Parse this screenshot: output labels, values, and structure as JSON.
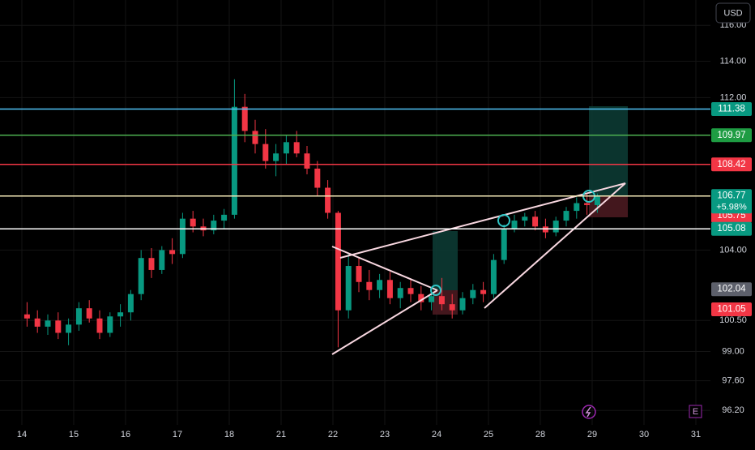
{
  "chart_data": {
    "type": "candlestick",
    "currency": "USD",
    "log_scale": true,
    "grid": true,
    "up_color": "#089981",
    "down_color": "#f23645",
    "ylim": [
      95.53,
      117.44
    ],
    "yticks": [
      {
        "value": 116,
        "label": "116.00"
      },
      {
        "value": 114,
        "label": "114.00"
      },
      {
        "value": 112,
        "label": "112.00"
      },
      {
        "value": 104,
        "label": "104.00"
      },
      {
        "value": 100.5,
        "label": "100.50"
      },
      {
        "value": 99,
        "label": "99.00"
      },
      {
        "value": 97.6,
        "label": "97.60"
      },
      {
        "value": 96.2,
        "label": "96.20"
      }
    ],
    "categories": [
      "14",
      null,
      null,
      null,
      null,
      "15",
      null,
      null,
      null,
      null,
      "16",
      null,
      null,
      null,
      null,
      "17",
      null,
      null,
      null,
      null,
      "18",
      null,
      null,
      null,
      null,
      "21",
      null,
      null,
      null,
      null,
      "22",
      null,
      null,
      null,
      null,
      "23",
      null,
      null,
      null,
      null,
      "24",
      null,
      null,
      null,
      null,
      "25",
      null,
      null,
      null,
      null,
      "28",
      null,
      null,
      null,
      null,
      "29",
      null,
      null,
      null,
      null,
      "30",
      null,
      null,
      null,
      null,
      "31",
      null,
      null,
      null,
      null
    ],
    "open": [
      100.8,
      100.6,
      100.2,
      100.5,
      99.9,
      100.3,
      101.1,
      100.6,
      99.9,
      100.7,
      100.9,
      101.8,
      103.6,
      103.0,
      104.0,
      103.8,
      105.6,
      105.2,
      105.0,
      105.5,
      105.8,
      111.5,
      110.2,
      109.5,
      108.6,
      109.0,
      109.6,
      109.0,
      108.2,
      107.2,
      105.9,
      101.0,
      103.2,
      102.4,
      102.0,
      102.5,
      101.6,
      102.1,
      101.8,
      101.4,
      101.7,
      101.3,
      101.0,
      101.6,
      102.0,
      101.8,
      103.5,
      105.1,
      105.5,
      105.7,
      105.2,
      104.9,
      105.5,
      106.0,
      106.4,
      106.3,
      null,
      null,
      null,
      null,
      null,
      null,
      null,
      null,
      null,
      null,
      null,
      null,
      null,
      null
    ],
    "high": [
      101.4,
      101.0,
      100.8,
      100.9,
      100.6,
      101.4,
      101.5,
      101.0,
      100.9,
      101.3,
      102.0,
      104.0,
      104.1,
      104.2,
      104.6,
      105.9,
      106.0,
      105.6,
      105.8,
      106.1,
      113.0,
      112.2,
      110.8,
      110.3,
      109.5,
      110.0,
      110.2,
      109.4,
      108.6,
      107.6,
      106.0,
      103.8,
      103.6,
      103.0,
      102.8,
      102.9,
      102.4,
      102.5,
      102.2,
      102.0,
      102.6,
      101.8,
      101.9,
      102.3,
      102.4,
      103.8,
      105.3,
      105.8,
      105.9,
      106.0,
      105.6,
      105.7,
      106.2,
      106.7,
      106.9,
      106.9,
      null,
      null,
      null,
      null,
      null,
      null,
      null,
      null,
      null,
      null,
      null,
      null,
      null,
      null
    ],
    "low": [
      100.2,
      99.9,
      99.8,
      99.6,
      99.3,
      100.0,
      100.4,
      99.6,
      99.7,
      100.2,
      100.5,
      101.5,
      102.6,
      102.8,
      103.3,
      103.6,
      104.9,
      104.7,
      104.8,
      105.1,
      105.6,
      109.6,
      109.0,
      108.2,
      107.8,
      108.4,
      108.8,
      107.9,
      106.8,
      105.6,
      99.2,
      100.6,
      101.9,
      101.5,
      101.6,
      101.3,
      101.1,
      101.4,
      101.0,
      101.0,
      101.0,
      100.6,
      100.8,
      101.3,
      101.4,
      101.6,
      103.3,
      104.9,
      105.2,
      105.0,
      104.6,
      104.7,
      105.2,
      105.6,
      105.8,
      105.9,
      null,
      null,
      null,
      null,
      null,
      null,
      null,
      null,
      null,
      null,
      null,
      null,
      null,
      null
    ],
    "close": [
      100.6,
      100.2,
      100.5,
      99.9,
      100.3,
      101.1,
      100.6,
      99.9,
      100.7,
      100.9,
      101.8,
      103.6,
      103.0,
      104.0,
      103.8,
      105.6,
      105.2,
      105.0,
      105.5,
      105.8,
      111.5,
      110.2,
      109.5,
      108.6,
      109.0,
      109.6,
      109.0,
      108.2,
      107.2,
      105.9,
      101.0,
      103.2,
      102.4,
      102.0,
      102.5,
      101.6,
      102.1,
      101.8,
      101.4,
      101.7,
      101.3,
      101.0,
      101.6,
      102.0,
      101.8,
      103.5,
      105.1,
      105.5,
      105.7,
      105.2,
      104.9,
      105.5,
      106.0,
      106.4,
      106.3,
      106.77,
      null,
      null,
      null,
      null,
      null,
      null,
      null,
      null,
      null,
      null,
      null,
      null,
      null,
      null
    ],
    "levels": [
      {
        "value": 111.38,
        "line": true,
        "line_color": "#4fc3f7",
        "tag_color": "#089981"
      },
      {
        "value": 109.97,
        "line": true,
        "line_color": "#4caf50",
        "tag_color": "#1e9c43"
      },
      {
        "value": 108.42,
        "line": true,
        "line_color": "#f23645",
        "tag_color": "#f23645"
      },
      {
        "value": 105.75,
        "line": false,
        "line_color": "#f23645",
        "tag_color": "#f23645"
      },
      {
        "value": 106.77,
        "line": true,
        "line_color": "#f5e9b8",
        "tag_color": "#089981"
      },
      {
        "value": 105.08,
        "line": true,
        "line_color": "#ffffff",
        "tag_color": "#089981"
      },
      {
        "value": 102.04,
        "line": false,
        "line_color": "#787b86",
        "tag_color": "#5d606b"
      },
      {
        "value": 101.05,
        "line": false,
        "line_color": "#f23645",
        "tag_color": "#f23645"
      }
    ],
    "change_label": "+5.98%",
    "event_icon": "E"
  }
}
